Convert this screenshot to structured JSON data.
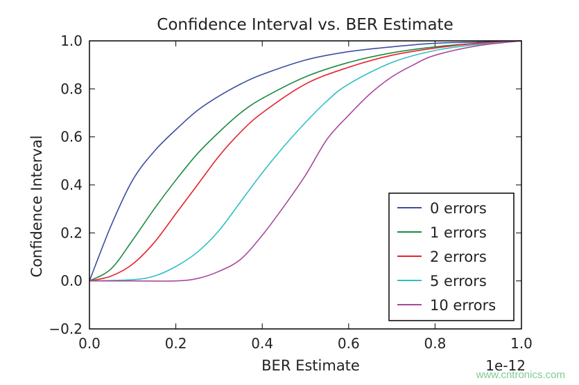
{
  "chart_data": {
    "type": "line",
    "title": "Confidence Interval vs. BER Estimate",
    "xlabel": "BER Estimate",
    "ylabel": "Confidence Interval",
    "x_offset_label": "1e-12",
    "xlim": [
      0,
      1
    ],
    "ylim": [
      -0.2,
      1.0
    ],
    "xticks": [
      "0.0",
      "0.2",
      "0.4",
      "0.6",
      "0.8",
      "1.0"
    ],
    "yticks": [
      "−0.2",
      "0.0",
      "0.2",
      "0.4",
      "0.6",
      "0.8",
      "1.0"
    ],
    "grid": false,
    "legend": "bottom-right",
    "series": [
      {
        "name": "0 errors",
        "color": "#3a4ea0",
        "x": [
          0,
          0.05,
          0.1,
          0.15,
          0.2,
          0.25,
          0.3,
          0.35,
          0.4,
          0.5,
          0.6,
          0.7,
          0.8,
          0.9,
          1
        ],
        "y": [
          0,
          0.23,
          0.42,
          0.54,
          0.63,
          0.71,
          0.77,
          0.82,
          0.86,
          0.92,
          0.955,
          0.975,
          0.99,
          0.995,
          1
        ]
      },
      {
        "name": "1 errors",
        "color": "#1a8a42",
        "x": [
          0,
          0.05,
          0.1,
          0.15,
          0.2,
          0.25,
          0.3,
          0.35,
          0.4,
          0.5,
          0.6,
          0.7,
          0.8,
          0.9,
          1
        ],
        "y": [
          0,
          0.05,
          0.17,
          0.3,
          0.42,
          0.53,
          0.62,
          0.7,
          0.76,
          0.85,
          0.91,
          0.95,
          0.975,
          0.99,
          1
        ]
      },
      {
        "name": "2 errors",
        "color": "#e8202a",
        "x": [
          0,
          0.05,
          0.1,
          0.15,
          0.2,
          0.25,
          0.3,
          0.35,
          0.4,
          0.5,
          0.6,
          0.7,
          0.8,
          0.9,
          1
        ],
        "y": [
          0,
          0.02,
          0.07,
          0.16,
          0.28,
          0.4,
          0.52,
          0.62,
          0.7,
          0.82,
          0.89,
          0.94,
          0.97,
          0.99,
          1
        ]
      },
      {
        "name": "5 errors",
        "color": "#2fbfc4",
        "x": [
          0,
          0.1,
          0.15,
          0.2,
          0.25,
          0.3,
          0.35,
          0.4,
          0.45,
          0.5,
          0.55,
          0.6,
          0.7,
          0.8,
          0.9,
          1
        ],
        "y": [
          0,
          0.005,
          0.02,
          0.06,
          0.12,
          0.21,
          0.33,
          0.45,
          0.56,
          0.66,
          0.75,
          0.82,
          0.91,
          0.96,
          0.985,
          1
        ]
      },
      {
        "name": "10 errors",
        "color": "#a8489c",
        "x": [
          0,
          0.1,
          0.2,
          0.25,
          0.3,
          0.35,
          0.4,
          0.45,
          0.5,
          0.55,
          0.6,
          0.65,
          0.7,
          0.75,
          0.8,
          0.9,
          1
        ],
        "y": [
          0,
          0,
          0,
          0.01,
          0.04,
          0.09,
          0.19,
          0.31,
          0.44,
          0.59,
          0.69,
          0.78,
          0.85,
          0.9,
          0.94,
          0.98,
          1
        ]
      }
    ]
  },
  "watermark": "www.cntronics.com"
}
